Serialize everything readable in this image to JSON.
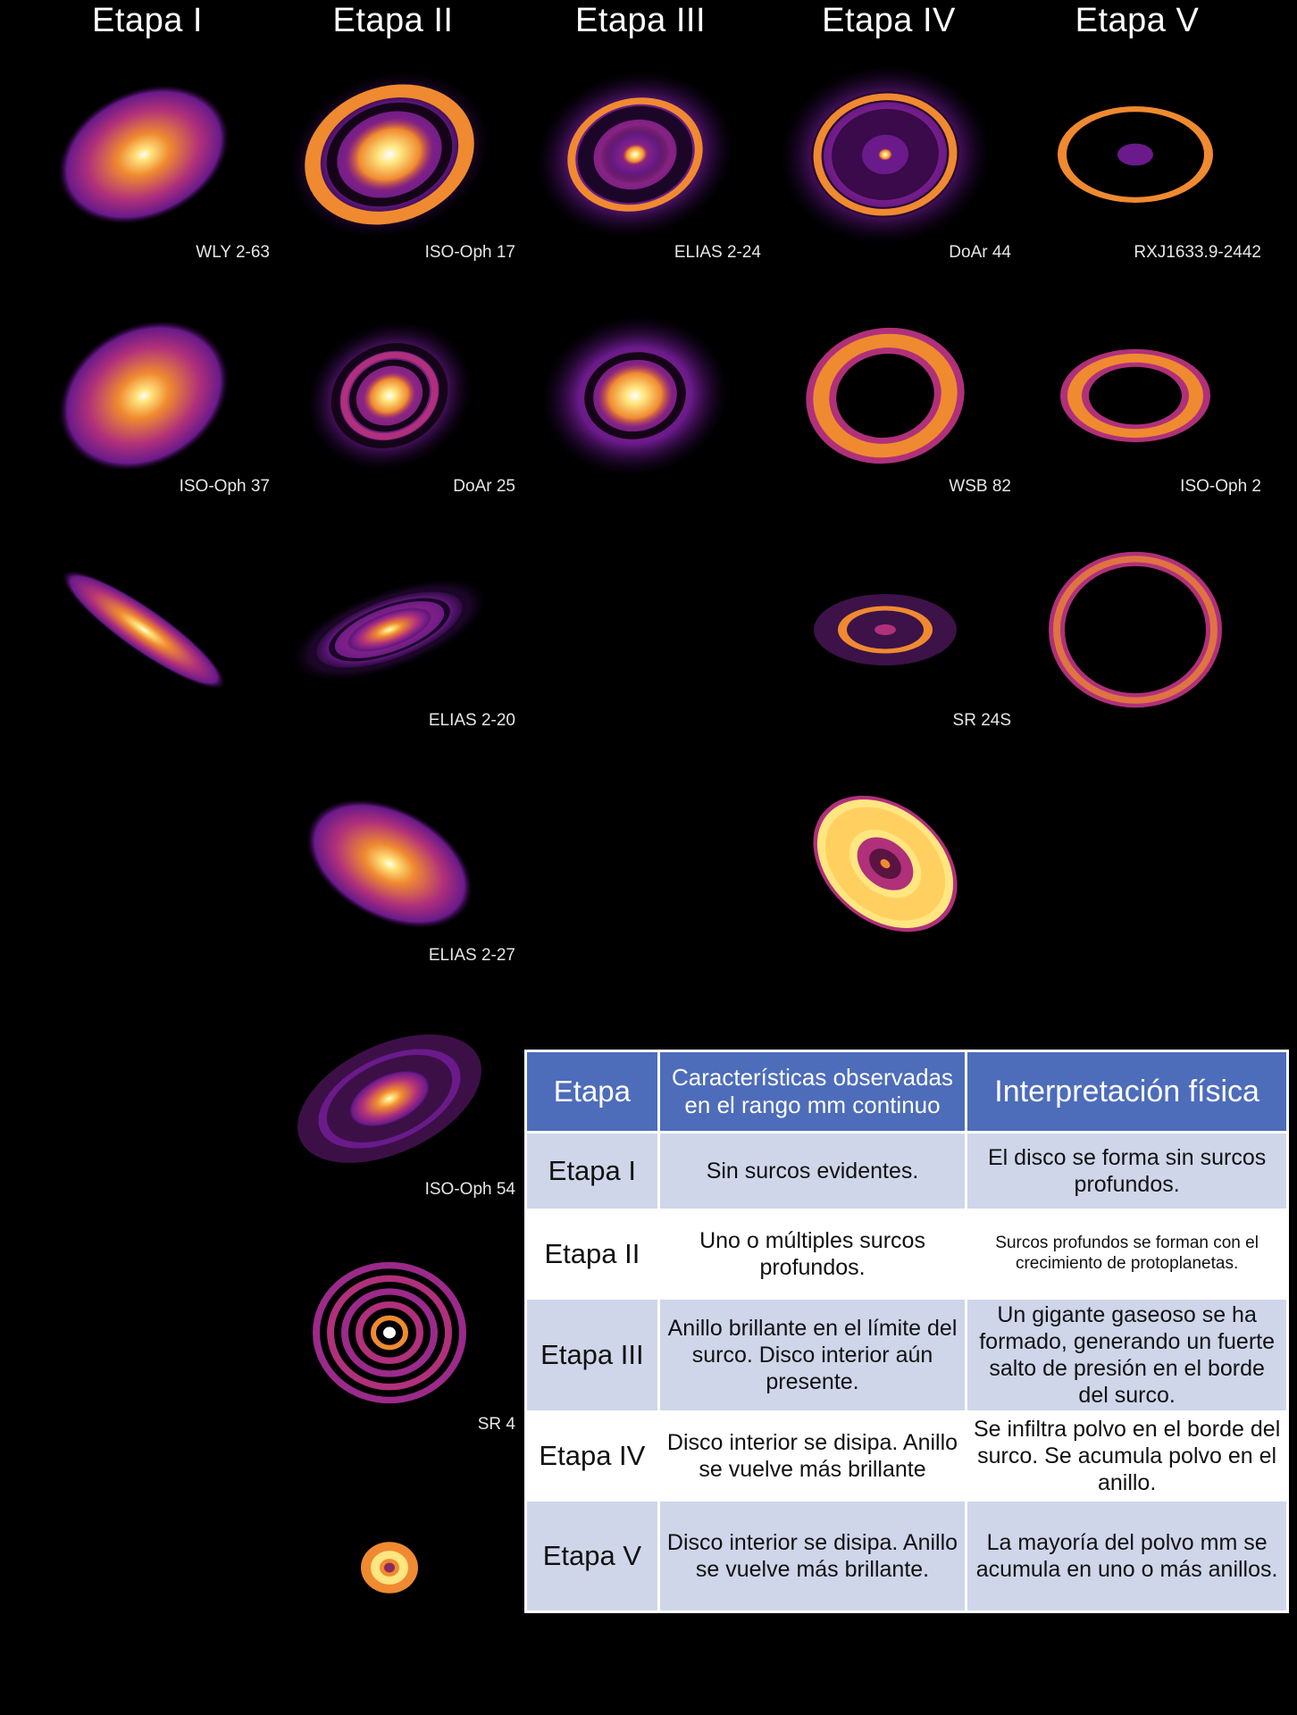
{
  "stage_titles": [
    "Etapa I",
    "Etapa II",
    "Etapa III",
    "Etapa IV",
    "Etapa V"
  ],
  "colormap": {
    "dark": "#1a0530",
    "purple": "#6a1a8a",
    "magenta": "#b0307a",
    "orange": "#f08a30",
    "yellow": "#ffe680",
    "white": "#ffffff"
  },
  "disks": [
    {
      "id": "stage1-top",
      "label": "",
      "col": 0,
      "row": 0,
      "kind": "smooth",
      "tilt": -25,
      "ar": 0.72,
      "rings": []
    },
    {
      "id": "stage2-top",
      "label": "",
      "col": 1,
      "row": 0,
      "kind": "gapped",
      "tilt": -20,
      "ar": 0.78,
      "rings": []
    },
    {
      "id": "stage3-top",
      "label": "",
      "col": 2,
      "row": 0,
      "kind": "bright-ring",
      "tilt": -15,
      "ar": 0.82,
      "rings": []
    },
    {
      "id": "stage4-top",
      "label": "",
      "col": 3,
      "row": 0,
      "kind": "ring-inner-faint",
      "tilt": -5,
      "ar": 0.85,
      "rings": []
    },
    {
      "id": "stage5-top",
      "label": "",
      "col": 4,
      "row": 0,
      "kind": "ring-only",
      "tilt": 0,
      "ar": 0.62,
      "rings": []
    },
    {
      "id": "wly-2-63",
      "label": "WLY 2-63",
      "col": 0,
      "row": 1,
      "kind": "smooth",
      "tilt": -30,
      "ar": 0.78
    },
    {
      "id": "iso-oph-17",
      "label": "ISO-Oph 17",
      "col": 1,
      "row": 1,
      "kind": "multi-gap",
      "tilt": -25,
      "ar": 0.85
    },
    {
      "id": "elias-2-24",
      "label": "ELIAS 2-24",
      "col": 2,
      "row": 1,
      "kind": "one-gap",
      "tilt": -10,
      "ar": 0.85
    },
    {
      "id": "doar-44",
      "label": "DoAr 44",
      "col": 3,
      "row": 1,
      "kind": "thick-ring",
      "tilt": -10,
      "ar": 0.85
    },
    {
      "id": "rxj1633",
      "label": "RXJ1633.9-2442",
      "col": 4,
      "row": 1,
      "kind": "thick-ring-small",
      "tilt": 0,
      "ar": 0.62
    },
    {
      "id": "iso-oph-37",
      "label": "ISO-Oph 37",
      "col": 0,
      "row": 2,
      "kind": "edge-on",
      "tilt": 35,
      "ar": 0.22
    },
    {
      "id": "doar-25",
      "label": "DoAr 25",
      "col": 1,
      "row": 2,
      "kind": "edge-rings",
      "tilt": -20,
      "ar": 0.38
    },
    {
      "id": "wsb-82",
      "label": "WSB 82",
      "col": 3,
      "row": 2,
      "kind": "vertical-ring",
      "tilt": 0,
      "ar": 0.5
    },
    {
      "id": "iso-oph-2",
      "label": "ISO-Oph 2",
      "col": 4,
      "row": 2,
      "kind": "faint-ring",
      "tilt": 0,
      "ar": 0.9
    },
    {
      "id": "elias-2-20",
      "label": "ELIAS 2-20",
      "col": 1,
      "row": 3,
      "kind": "smooth",
      "tilt": 28,
      "ar": 0.62
    },
    {
      "id": "sr-24s",
      "label": "SR 24S",
      "col": 3,
      "row": 3,
      "kind": "bright-thick",
      "tilt": 40,
      "ar": 0.72
    },
    {
      "id": "elias-2-27",
      "label": "ELIAS 2-27",
      "col": 1,
      "row": 4,
      "kind": "spiral",
      "tilt": -25,
      "ar": 0.55
    },
    {
      "id": "iso-oph-54",
      "label": "ISO-Oph 54",
      "col": 1,
      "row": 5,
      "kind": "many-rings",
      "tilt": 0,
      "ar": 0.92
    },
    {
      "id": "sr-4",
      "label": "SR 4",
      "col": 1,
      "row": 6,
      "kind": "compact",
      "tilt": 0,
      "ar": 0.9
    }
  ],
  "table": {
    "headers": [
      "Etapa",
      "Características observadas en el rango mm continuo",
      "Interpretación física"
    ],
    "rows": [
      {
        "stage": "Etapa I",
        "observed": "Sin surcos evidentes.",
        "interpretation": "El disco se forma sin surcos profundos.",
        "small": false
      },
      {
        "stage": "Etapa II",
        "observed": "Uno o múltiples surcos profundos.",
        "interpretation": "Surcos profundos se forman con el crecimiento de protoplanetas.",
        "small": true
      },
      {
        "stage": "Etapa III",
        "observed": "Anillo brillante en el límite del surco. Disco interior aún presente.",
        "interpretation": "Un gigante gaseoso se ha formado, generando un fuerte salto de presión en el borde del surco.",
        "small": false
      },
      {
        "stage": "Etapa IV",
        "observed": "Disco interior se disipa. Anillo se vuelve más brillante",
        "interpretation": "Se infiltra polvo en el borde del surco. Se acumula polvo en el anillo.",
        "small": false
      },
      {
        "stage": "Etapa V",
        "observed": "Disco interior se disipa. Anillo se vuelve más brillante.",
        "interpretation": "La mayoría del polvo mm se acumula en uno o más anillos.",
        "small": false
      }
    ]
  }
}
